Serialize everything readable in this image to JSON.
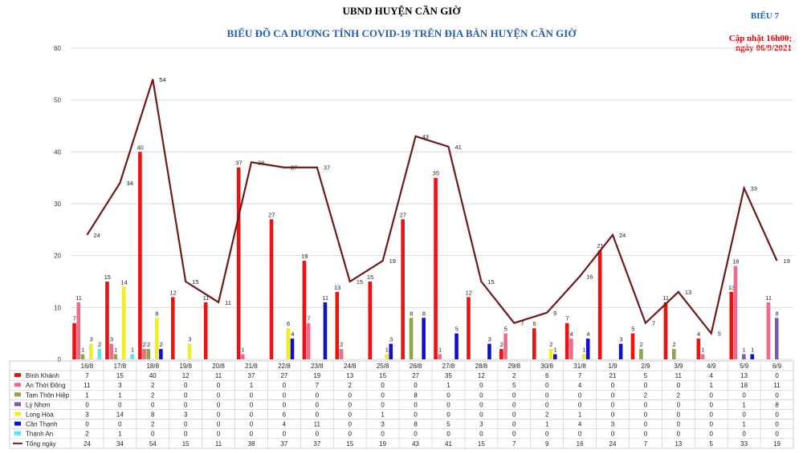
{
  "header": {
    "title": "UBND HUYỆN CẦN GIỜ",
    "subtitle": "BIỂU ĐỒ CA DƯƠNG TÍNH COVID-19 TRÊN ĐỊA BÀN HUYỆN CẦN GIỜ",
    "label": "BIỂU 7",
    "update_line1": "Cập nhật 16h00;",
    "update_line2": "ngày 06/9/2021"
  },
  "chart_data": {
    "type": "bar",
    "title": "BIỂU ĐỒ CA DƯƠNG TÍNH COVID-19 TRÊN ĐỊA BÀN HUYỆN CẦN GIỜ",
    "categories": [
      "16/8",
      "17/8",
      "18/8",
      "19/8",
      "20/8",
      "21/8",
      "22/8",
      "23/8",
      "24/8",
      "25/8",
      "26/8",
      "27/8",
      "28/8",
      "29/8",
      "30/8",
      "31/8",
      "1/9",
      "2/9",
      "3/9",
      "4/9",
      "5/9",
      "6/9"
    ],
    "ylim": [
      0,
      60
    ],
    "yticks": [
      0,
      10,
      20,
      30,
      40,
      50,
      60
    ],
    "legend_position": "bottom-table",
    "series": [
      {
        "name": "Bình Khánh",
        "kind": "bar",
        "color": "#ee1111",
        "values": [
          7,
          15,
          40,
          12,
          11,
          37,
          27,
          19,
          13,
          15,
          27,
          35,
          12,
          2,
          6,
          7,
          21,
          5,
          11,
          4,
          13,
          0
        ]
      },
      {
        "name": "An Thới Đông",
        "kind": "bar",
        "color": "#f06a8a",
        "values": [
          11,
          3,
          2,
          0,
          0,
          1,
          0,
          7,
          2,
          0,
          0,
          1,
          0,
          5,
          0,
          4,
          0,
          0,
          0,
          1,
          18,
          11
        ]
      },
      {
        "name": "Tam Thôn Hiệp",
        "kind": "bar",
        "color": "#8aa84a",
        "values": [
          1,
          1,
          2,
          0,
          0,
          0,
          0,
          0,
          0,
          0,
          8,
          0,
          0,
          0,
          0,
          0,
          0,
          2,
          2,
          0,
          0,
          0
        ]
      },
      {
        "name": "Lý Nhơn",
        "kind": "bar",
        "color": "#7a5ea8",
        "values": [
          0,
          0,
          0,
          0,
          0,
          0,
          0,
          0,
          0,
          0,
          0,
          0,
          0,
          0,
          0,
          0,
          0,
          0,
          0,
          0,
          1,
          8
        ]
      },
      {
        "name": "Long Hòa",
        "kind": "bar",
        "color": "#f2ee22",
        "values": [
          3,
          14,
          8,
          3,
          0,
          0,
          6,
          0,
          0,
          1,
          0,
          0,
          0,
          0,
          2,
          1,
          0,
          0,
          0,
          0,
          0,
          0
        ]
      },
      {
        "name": "Cần Thạnh",
        "kind": "bar",
        "color": "#1010c8",
        "values": [
          0,
          0,
          2,
          0,
          0,
          0,
          4,
          11,
          0,
          3,
          8,
          5,
          3,
          0,
          1,
          4,
          3,
          0,
          0,
          0,
          1,
          0
        ]
      },
      {
        "name": "Thạnh An",
        "kind": "bar",
        "color": "#55e6f0",
        "values": [
          2,
          1,
          0,
          0,
          0,
          0,
          0,
          0,
          0,
          0,
          0,
          0,
          0,
          0,
          0,
          0,
          0,
          0,
          0,
          0,
          0,
          0
        ]
      },
      {
        "name": "Tổng ngày",
        "kind": "line",
        "color": "#6e1a1a",
        "values": [
          24,
          34,
          54,
          15,
          11,
          38,
          37,
          37,
          15,
          19,
          43,
          41,
          15,
          7,
          9,
          16,
          24,
          7,
          13,
          5,
          33,
          19
        ]
      }
    ]
  }
}
